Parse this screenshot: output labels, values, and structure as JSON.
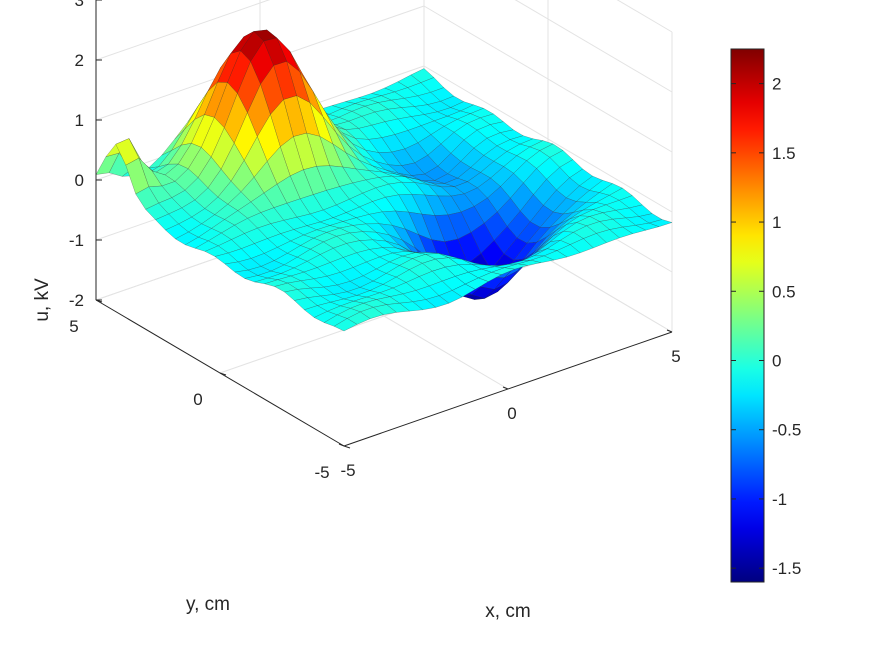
{
  "chart_data": {
    "type": "surface",
    "title": "",
    "xlabel": "x, cm",
    "ylabel": "y, cm",
    "zlabel": "u, kV",
    "xlim": [
      -5,
      5
    ],
    "ylim": [
      -5,
      5
    ],
    "zlim": [
      -2,
      3
    ],
    "x_ticks": [
      "-5",
      "0",
      "5"
    ],
    "y_ticks": [
      "-5",
      "0",
      "5"
    ],
    "z_ticks": [
      "-2",
      "-1",
      "0",
      "1",
      "2",
      "3"
    ],
    "grid": true,
    "colormap": "jet",
    "colorbar": {
      "limits": [
        -1.6,
        2.25
      ],
      "ticks": [
        "-1.5",
        "-1",
        "-0.5",
        "0",
        "0.5",
        "1",
        "1.5",
        "2"
      ],
      "tick_values": [
        -1.5,
        -1,
        -0.5,
        0,
        0.5,
        1,
        1.5,
        2
      ]
    },
    "features": [
      {
        "kind": "peak",
        "x": -1.3,
        "y": 3.3,
        "value": 2.25
      },
      {
        "kind": "peak",
        "x": -4.8,
        "y": 4.2,
        "value": 0.9
      },
      {
        "kind": "trough",
        "x": 1.5,
        "y": -1.8,
        "value": -1.6
      },
      {
        "kind": "trough",
        "x": 2.8,
        "y": 1.5,
        "value": -0.6
      },
      {
        "kind": "trough",
        "x": 3.2,
        "y": -1.3,
        "value": -0.5
      }
    ]
  }
}
